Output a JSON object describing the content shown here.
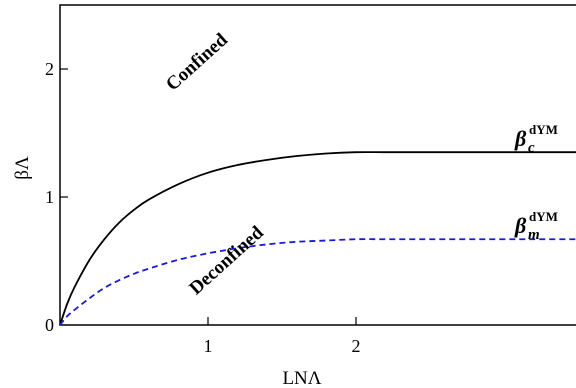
{
  "chart_data": {
    "type": "line",
    "xlabel": "LNΛ",
    "ylabel": "βΛ",
    "xlim": [
      0,
      3.5
    ],
    "ylim": [
      0,
      2.5
    ],
    "x_ticks": [
      1,
      2
    ],
    "y_ticks": [
      0,
      1,
      2
    ],
    "grid": false,
    "legend": "none",
    "series": [
      {
        "name": "β_c^dYM",
        "label_main": "β",
        "label_sub": "c",
        "label_sup": "dYM",
        "style": "solid",
        "color": "#000000",
        "x": [
          0,
          0.05,
          0.1,
          0.2,
          0.3,
          0.4,
          0.5,
          0.6,
          0.8,
          1.0,
          1.2,
          1.4,
          1.6,
          1.8,
          2.0,
          2.2,
          2.4,
          2.6,
          2.8,
          3.0,
          3.2,
          3.5
        ],
        "y": [
          0,
          0.17,
          0.3,
          0.51,
          0.67,
          0.8,
          0.9,
          0.98,
          1.1,
          1.19,
          1.25,
          1.29,
          1.32,
          1.34,
          1.35,
          1.35,
          1.35,
          1.35,
          1.35,
          1.35,
          1.35,
          1.35
        ]
      },
      {
        "name": "β_m^dYM",
        "label_main": "β",
        "label_sub": "m",
        "label_sup": "dYM",
        "style": "dashed",
        "color": "#1a1ad6",
        "x": [
          0,
          0.05,
          0.1,
          0.2,
          0.3,
          0.4,
          0.5,
          0.6,
          0.8,
          1.0,
          1.2,
          1.4,
          1.6,
          1.8,
          2.0,
          2.2,
          2.4,
          2.6,
          2.8,
          3.0,
          3.2,
          3.5
        ],
        "y": [
          0,
          0.07,
          0.12,
          0.21,
          0.29,
          0.35,
          0.4,
          0.44,
          0.51,
          0.56,
          0.6,
          0.63,
          0.65,
          0.66,
          0.67,
          0.67,
          0.67,
          0.67,
          0.67,
          0.67,
          0.67,
          0.67
        ]
      }
    ],
    "annotations": [
      {
        "text": "Confined",
        "x": 0.95,
        "y": 2.02,
        "rotate": -42
      },
      {
        "text": "Deconfined",
        "x": 1.15,
        "y": 0.47,
        "rotate": -42
      }
    ]
  }
}
